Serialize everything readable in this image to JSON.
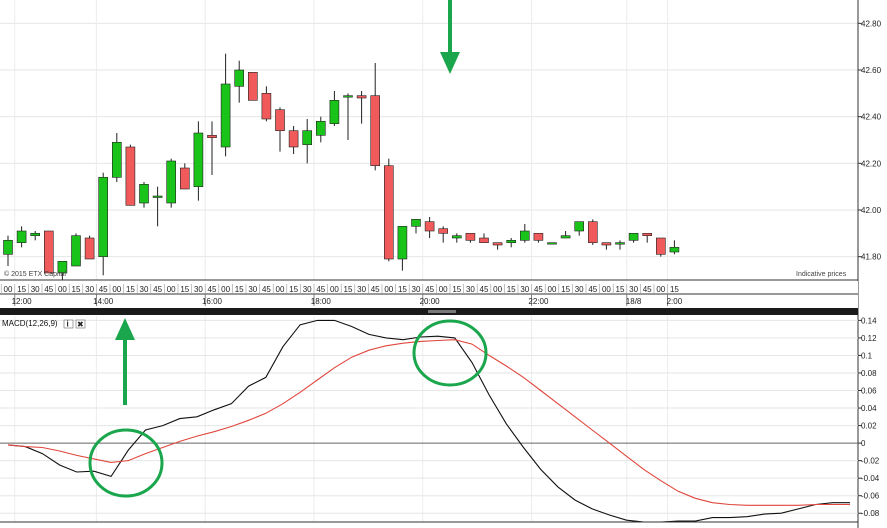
{
  "chart_data": [
    {
      "type": "candlestick",
      "title": "",
      "copyright": "© 2015 ETX Capital",
      "note": "Indicative prices",
      "y_ticks": [
        "41.80",
        "42.00",
        "42.20",
        "42.40",
        "42.60",
        "42.80"
      ],
      "ylim": [
        41.7,
        42.9
      ],
      "grid": true,
      "colors": {
        "up": "#19c319",
        "down": "#f05a5a"
      },
      "candles": [
        {
          "o": 41.81,
          "h": 41.89,
          "l": 41.76,
          "c": 41.87
        },
        {
          "o": 41.86,
          "h": 41.93,
          "l": 41.84,
          "c": 41.91
        },
        {
          "o": 41.89,
          "h": 41.91,
          "l": 41.87,
          "c": 41.9
        },
        {
          "o": 41.91,
          "h": 41.91,
          "l": 41.73,
          "c": 41.73
        },
        {
          "o": 41.73,
          "h": 41.78,
          "l": 41.7,
          "c": 41.78
        },
        {
          "o": 41.76,
          "h": 41.9,
          "l": 41.76,
          "c": 41.89
        },
        {
          "o": 41.88,
          "h": 41.89,
          "l": 41.79,
          "c": 41.79
        },
        {
          "o": 41.8,
          "h": 42.16,
          "l": 41.72,
          "c": 42.14
        },
        {
          "o": 42.14,
          "h": 42.33,
          "l": 42.12,
          "c": 42.29
        },
        {
          "o": 42.27,
          "h": 42.28,
          "l": 42.02,
          "c": 42.02
        },
        {
          "o": 42.03,
          "h": 42.12,
          "l": 42.01,
          "c": 42.11
        },
        {
          "o": 42.06,
          "h": 42.1,
          "l": 41.93,
          "c": 42.06
        },
        {
          "o": 42.03,
          "h": 42.22,
          "l": 42.01,
          "c": 42.21
        },
        {
          "o": 42.18,
          "h": 42.2,
          "l": 42.09,
          "c": 42.09
        },
        {
          "o": 42.1,
          "h": 42.38,
          "l": 42.04,
          "c": 42.33
        },
        {
          "o": 42.32,
          "h": 42.38,
          "l": 42.15,
          "c": 42.31
        },
        {
          "o": 42.27,
          "h": 42.67,
          "l": 42.23,
          "c": 42.54
        },
        {
          "o": 42.53,
          "h": 42.64,
          "l": 42.46,
          "c": 42.6
        },
        {
          "o": 42.59,
          "h": 42.59,
          "l": 42.47,
          "c": 42.47
        },
        {
          "o": 42.5,
          "h": 42.53,
          "l": 42.38,
          "c": 42.39
        },
        {
          "o": 42.43,
          "h": 42.44,
          "l": 42.25,
          "c": 42.34
        },
        {
          "o": 42.34,
          "h": 42.36,
          "l": 42.24,
          "c": 42.27
        },
        {
          "o": 42.28,
          "h": 42.39,
          "l": 42.2,
          "c": 42.34
        },
        {
          "o": 42.32,
          "h": 42.4,
          "l": 42.29,
          "c": 42.38
        },
        {
          "o": 42.37,
          "h": 42.51,
          "l": 42.36,
          "c": 42.47
        },
        {
          "o": 42.49,
          "h": 42.5,
          "l": 42.3,
          "c": 42.49
        },
        {
          "o": 42.49,
          "h": 42.51,
          "l": 42.37,
          "c": 42.48
        },
        {
          "o": 42.49,
          "h": 42.63,
          "l": 42.17,
          "c": 42.19
        },
        {
          "o": 42.19,
          "h": 42.22,
          "l": 41.78,
          "c": 41.79
        },
        {
          "o": 41.79,
          "h": 41.92,
          "l": 41.74,
          "c": 41.93
        },
        {
          "o": 41.93,
          "h": 41.95,
          "l": 41.9,
          "c": 41.96
        },
        {
          "o": 41.95,
          "h": 41.97,
          "l": 41.88,
          "c": 41.91
        },
        {
          "o": 41.92,
          "h": 41.93,
          "l": 41.86,
          "c": 41.9
        },
        {
          "o": 41.88,
          "h": 41.9,
          "l": 41.86,
          "c": 41.89
        },
        {
          "o": 41.9,
          "h": 41.9,
          "l": 41.86,
          "c": 41.87
        },
        {
          "o": 41.88,
          "h": 41.9,
          "l": 41.86,
          "c": 41.86
        },
        {
          "o": 41.86,
          "h": 41.86,
          "l": 41.83,
          "c": 41.85
        },
        {
          "o": 41.86,
          "h": 41.88,
          "l": 41.84,
          "c": 41.87
        },
        {
          "o": 41.87,
          "h": 41.94,
          "l": 41.86,
          "c": 41.91
        },
        {
          "o": 41.9,
          "h": 41.9,
          "l": 41.86,
          "c": 41.87
        },
        {
          "o": 41.86,
          "h": 41.86,
          "l": 41.86,
          "c": 41.86
        },
        {
          "o": 41.88,
          "h": 41.91,
          "l": 41.88,
          "c": 41.89
        },
        {
          "o": 41.91,
          "h": 41.95,
          "l": 41.89,
          "c": 41.95
        },
        {
          "o": 41.95,
          "h": 41.96,
          "l": 41.85,
          "c": 41.86
        },
        {
          "o": 41.86,
          "h": 41.86,
          "l": 41.83,
          "c": 41.85
        },
        {
          "o": 41.86,
          "h": 41.87,
          "l": 41.83,
          "c": 41.86
        },
        {
          "o": 41.87,
          "h": 41.9,
          "l": 41.86,
          "c": 41.9
        },
        {
          "o": 41.9,
          "h": 41.9,
          "l": 41.86,
          "c": 41.89
        },
        {
          "o": 41.88,
          "h": 41.88,
          "l": 41.8,
          "c": 41.81
        },
        {
          "o": 41.82,
          "h": 41.87,
          "l": 41.81,
          "c": 41.84
        }
      ],
      "x_minute_labels": [
        "00",
        "15",
        "30",
        "45",
        "00",
        "15",
        "30",
        "45",
        "00",
        "15",
        "30",
        "45",
        "00",
        "15",
        "30",
        "45",
        "00",
        "15",
        "30",
        "45",
        "00",
        "15",
        "30",
        "45",
        "00",
        "15",
        "30",
        "45",
        "00",
        "15",
        "30",
        "45",
        "00",
        "15",
        "30",
        "45",
        "00",
        "15",
        "30",
        "45",
        "00",
        "15",
        "30",
        "45",
        "00",
        "15",
        "30",
        "45",
        "00",
        "15"
      ],
      "x_time_labels": [
        {
          "index": 1,
          "label": "12:00"
        },
        {
          "index": 7,
          "label": "14:00"
        },
        {
          "index": 15,
          "label": "16:00"
        },
        {
          "index": 23,
          "label": "18:00"
        },
        {
          "index": 31,
          "label": "20:00"
        },
        {
          "index": 39,
          "label": "22:00"
        },
        {
          "index": 46,
          "label": "18/8"
        },
        {
          "index": 49,
          "label": "2:00"
        }
      ]
    },
    {
      "type": "line",
      "title": "MACD(12,26,9)",
      "y_ticks": [
        "0.14",
        "0.12",
        "0.1",
        "0.08",
        "0.06",
        "0.04",
        "0.02",
        "0",
        "-0.02",
        "-0.04",
        "-0.06",
        "-0.08"
      ],
      "ylim": [
        -0.09,
        0.145
      ],
      "grid": true,
      "series": [
        {
          "color": "#111111",
          "values": [
            -0.002,
            -0.004,
            -0.012,
            -0.025,
            -0.033,
            -0.032,
            -0.038,
            -0.008,
            0.015,
            0.02,
            0.028,
            0.03,
            0.038,
            0.045,
            0.065,
            0.075,
            0.11,
            0.135,
            0.14,
            0.14,
            0.133,
            0.124,
            0.12,
            0.118,
            0.121,
            0.122,
            0.12,
            0.092,
            0.055,
            0.022,
            -0.005,
            -0.03,
            -0.05,
            -0.065,
            -0.075,
            -0.082,
            -0.088,
            -0.09,
            -0.09,
            -0.089,
            -0.089,
            -0.085,
            -0.085,
            -0.084,
            -0.081,
            -0.08,
            -0.075,
            -0.07,
            -0.068,
            -0.068
          ]
        },
        {
          "color": "#e0463c",
          "values": [
            -0.002,
            -0.004,
            -0.005,
            -0.009,
            -0.014,
            -0.018,
            -0.022,
            -0.02,
            -0.012,
            -0.005,
            0.002,
            0.008,
            0.013,
            0.019,
            0.026,
            0.034,
            0.045,
            0.058,
            0.072,
            0.086,
            0.098,
            0.106,
            0.111,
            0.114,
            0.116,
            0.117,
            0.118,
            0.113,
            0.1,
            0.088,
            0.075,
            0.06,
            0.045,
            0.03,
            0.015,
            0,
            -0.015,
            -0.03,
            -0.043,
            -0.055,
            -0.063,
            -0.068,
            -0.07,
            -0.071,
            -0.071,
            -0.071,
            -0.071,
            -0.07,
            -0.07,
            -0.07
          ]
        }
      ]
    }
  ],
  "toolbar": {
    "info_icon": "i",
    "close_icon": "✖"
  },
  "annotations": {
    "arrow_color": "#1aa64c"
  }
}
